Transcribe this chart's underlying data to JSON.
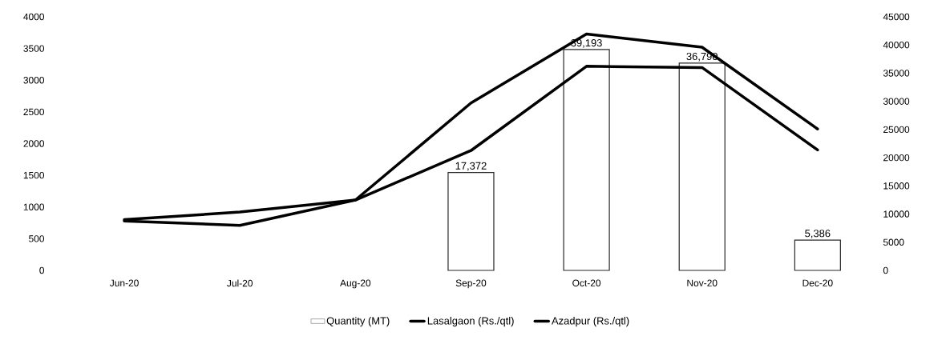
{
  "chart_data": {
    "type": "line",
    "categories": [
      "Jun-20",
      "Jul-20",
      "Aug-20",
      "Sep-20",
      "Oct-20",
      "Nov-20",
      "Dec-20"
    ],
    "series": [
      {
        "name": "Quantity (MT)",
        "type": "bar",
        "axis": "y2",
        "color": "#ffffff",
        "values": [
          null,
          null,
          null,
          17372,
          39193,
          36790,
          5386
        ],
        "value_labels": [
          null,
          null,
          null,
          "17,372",
          "39,193",
          "36,790",
          "5,386"
        ]
      },
      {
        "name": "Lasalgaon (Rs./qtl)",
        "color": "#000000",
        "values": [
          780,
          710,
          1110,
          1890,
          3220,
          3200,
          1900
        ]
      },
      {
        "name": "Azadpur (Rs./qtl)",
        "color": "#000000",
        "values": [
          800,
          920,
          1110,
          2640,
          3730,
          3520,
          2230
        ]
      }
    ],
    "ylim": [
      0,
      4000
    ],
    "yticks": [
      0,
      500,
      1000,
      1500,
      2000,
      2500,
      3000,
      3500,
      4000
    ],
    "y2lim": [
      0,
      45000
    ],
    "y2ticks": [
      0,
      5000,
      10000,
      15000,
      20000,
      25000,
      30000,
      35000,
      40000,
      45000
    ],
    "grid": false,
    "legend": "bottom"
  }
}
